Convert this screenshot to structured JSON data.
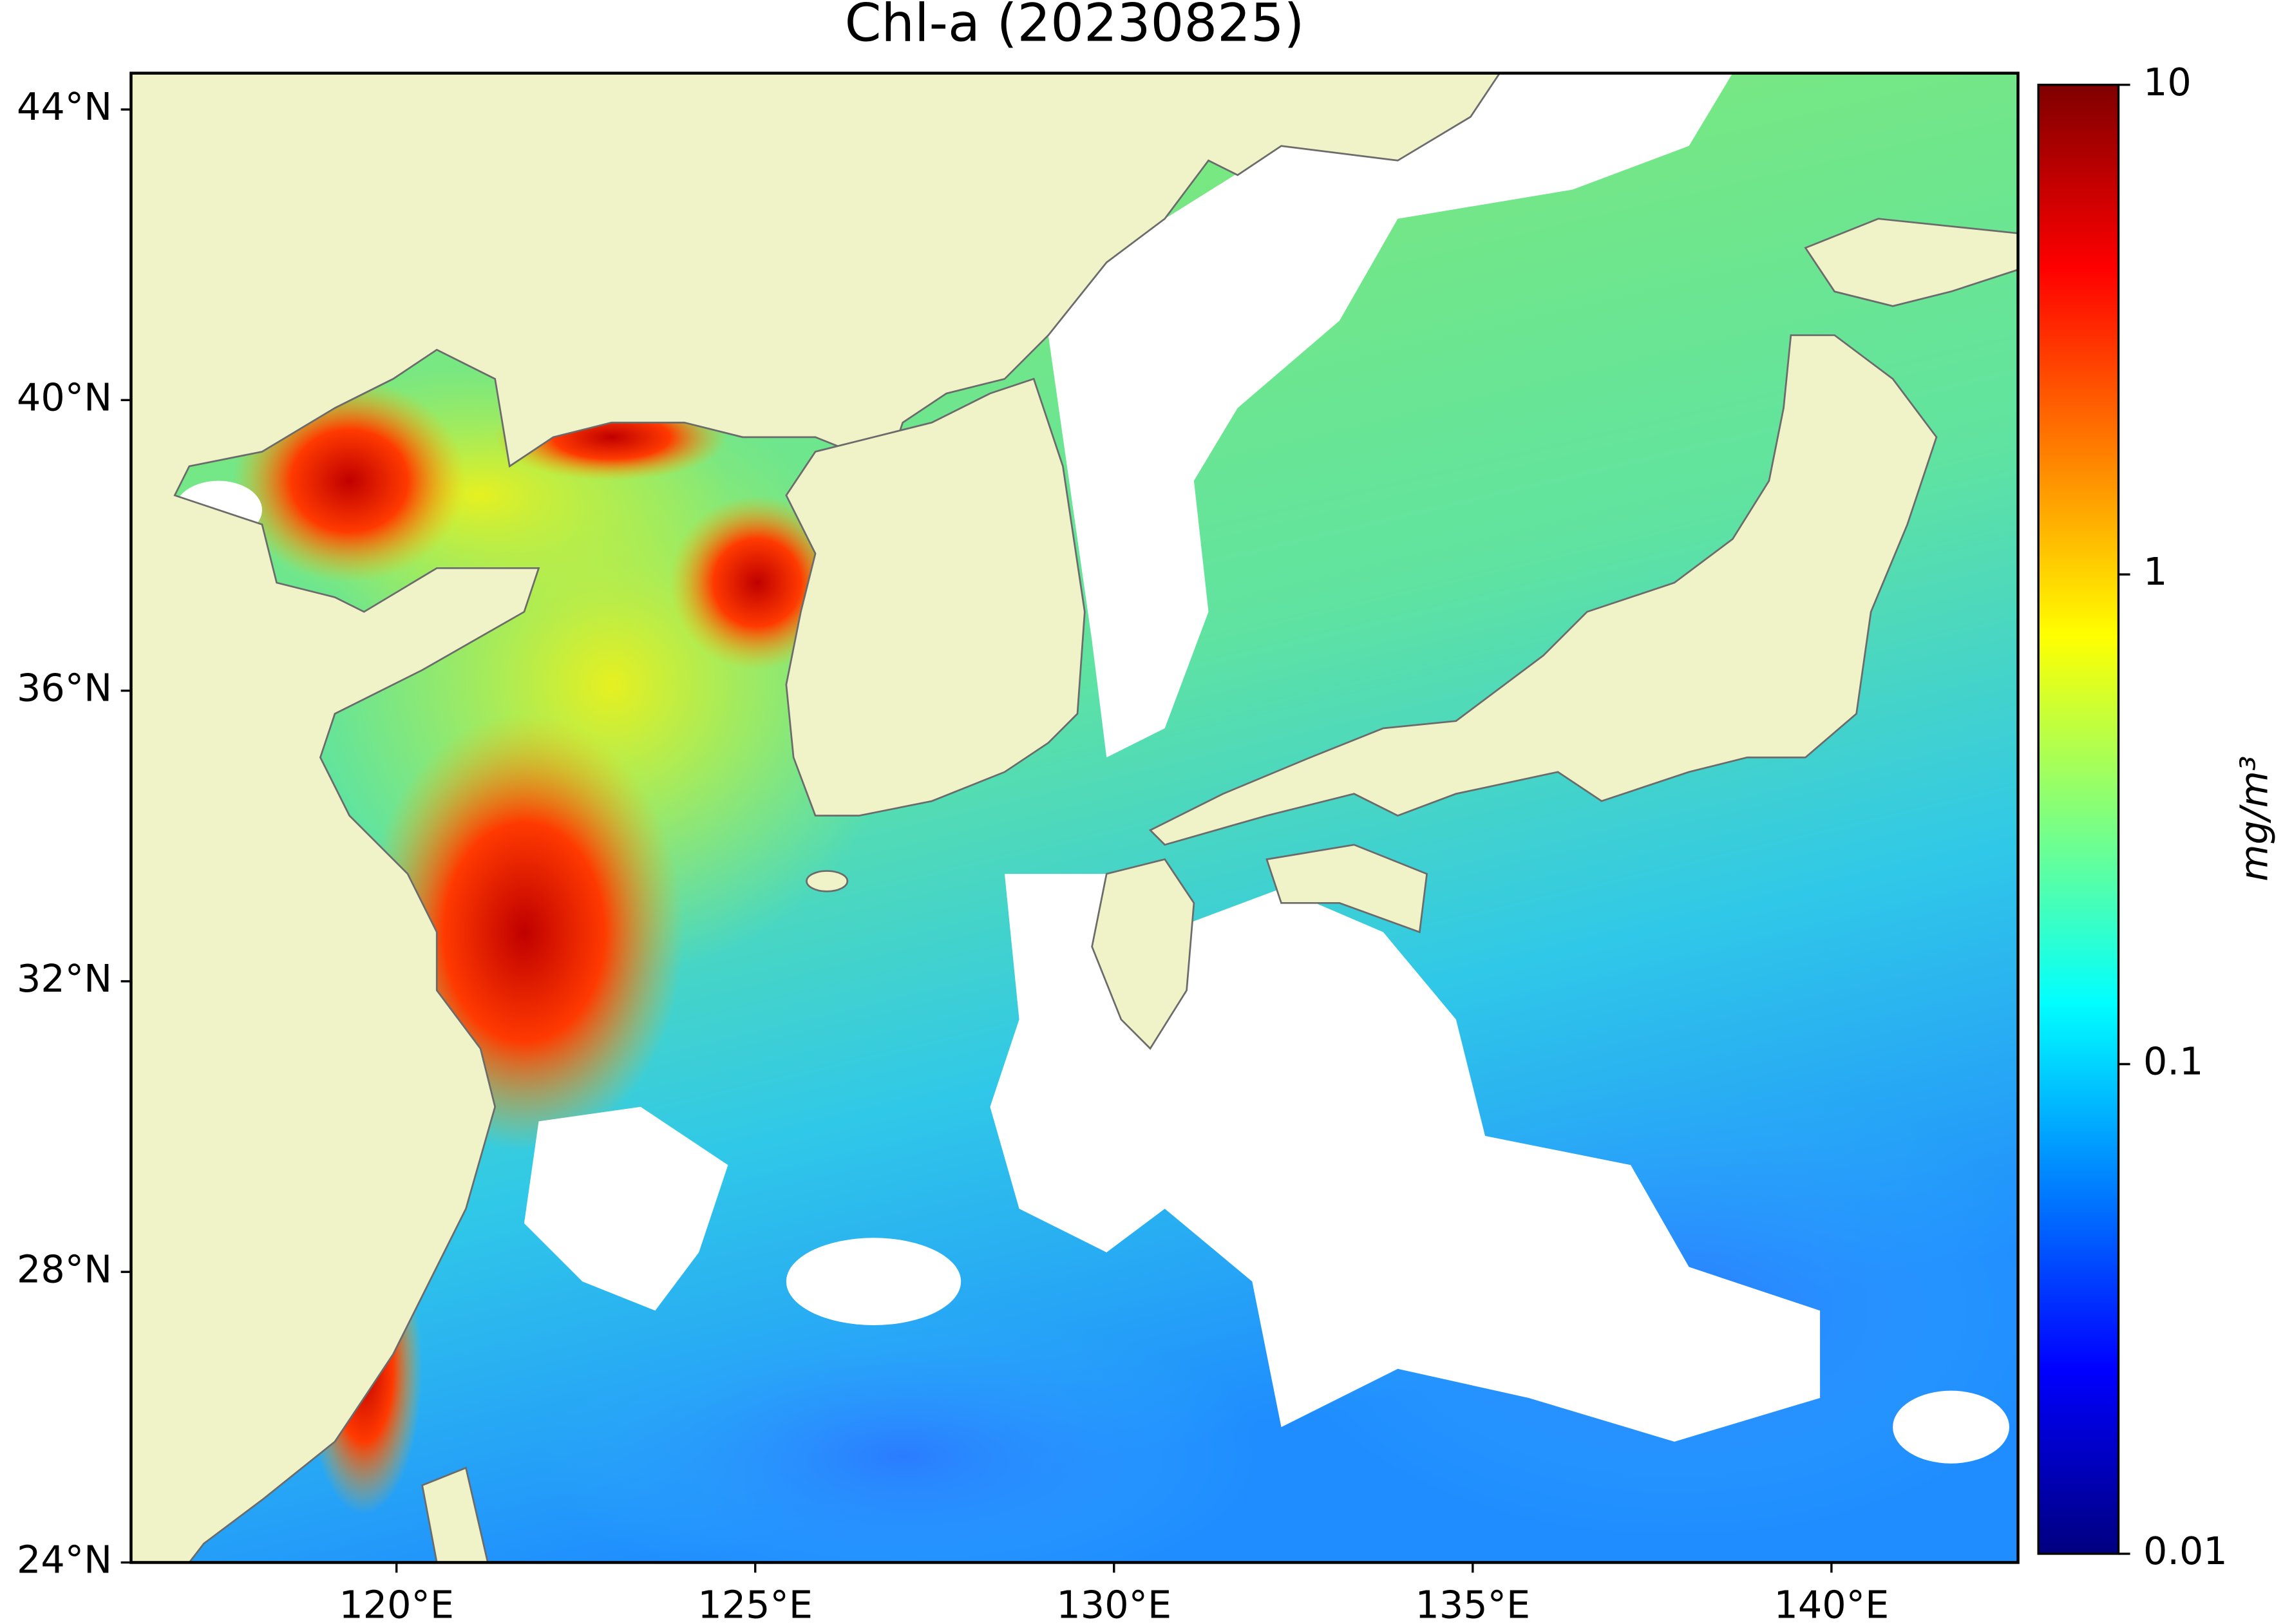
{
  "chart_data": {
    "type": "map",
    "title": "Chl-a (20230825)",
    "xlim": [
      116.3,
      142.6
    ],
    "ylim": [
      24,
      44.5
    ],
    "xticks": [
      {
        "value": 120,
        "label": "120°E"
      },
      {
        "value": 125,
        "label": "125°E"
      },
      {
        "value": 130,
        "label": "130°E"
      },
      {
        "value": 135,
        "label": "135°E"
      },
      {
        "value": 140,
        "label": "140°E"
      }
    ],
    "yticks": [
      {
        "value": 24,
        "label": "24°N"
      },
      {
        "value": 28,
        "label": "28°N"
      },
      {
        "value": 32,
        "label": "32°N"
      },
      {
        "value": 36,
        "label": "36°N"
      },
      {
        "value": 40,
        "label": "40°N"
      },
      {
        "value": 44,
        "label": "44°N"
      }
    ],
    "colorbar": {
      "label": "mg/m³",
      "scale": "log",
      "lim": [
        0.01,
        10
      ],
      "ticks": [
        0.01,
        0.1,
        1,
        10
      ],
      "colormap": "jet"
    }
  }
}
